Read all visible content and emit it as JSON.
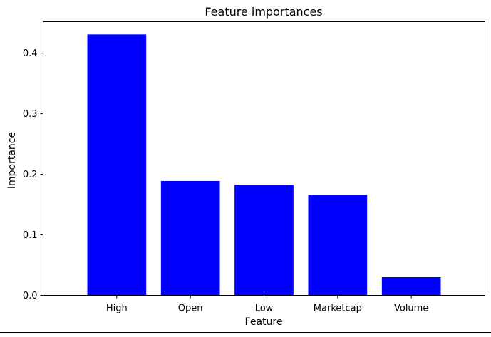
{
  "chart_data": {
    "type": "bar",
    "title": "Feature importances",
    "xlabel": "Feature",
    "ylabel": "Importance",
    "categories": [
      "High",
      "Open",
      "Low",
      "Marketcap",
      "Volume"
    ],
    "values": [
      0.431,
      0.189,
      0.183,
      0.166,
      0.03
    ],
    "ylim": [
      0,
      0.452
    ],
    "yticks": [
      0.0,
      0.1,
      0.2,
      0.3,
      0.4
    ],
    "ytick_labels": [
      "0.0",
      "0.1",
      "0.2",
      "0.3",
      "0.4"
    ],
    "bar_color": "#0000ff",
    "grid": false
  }
}
